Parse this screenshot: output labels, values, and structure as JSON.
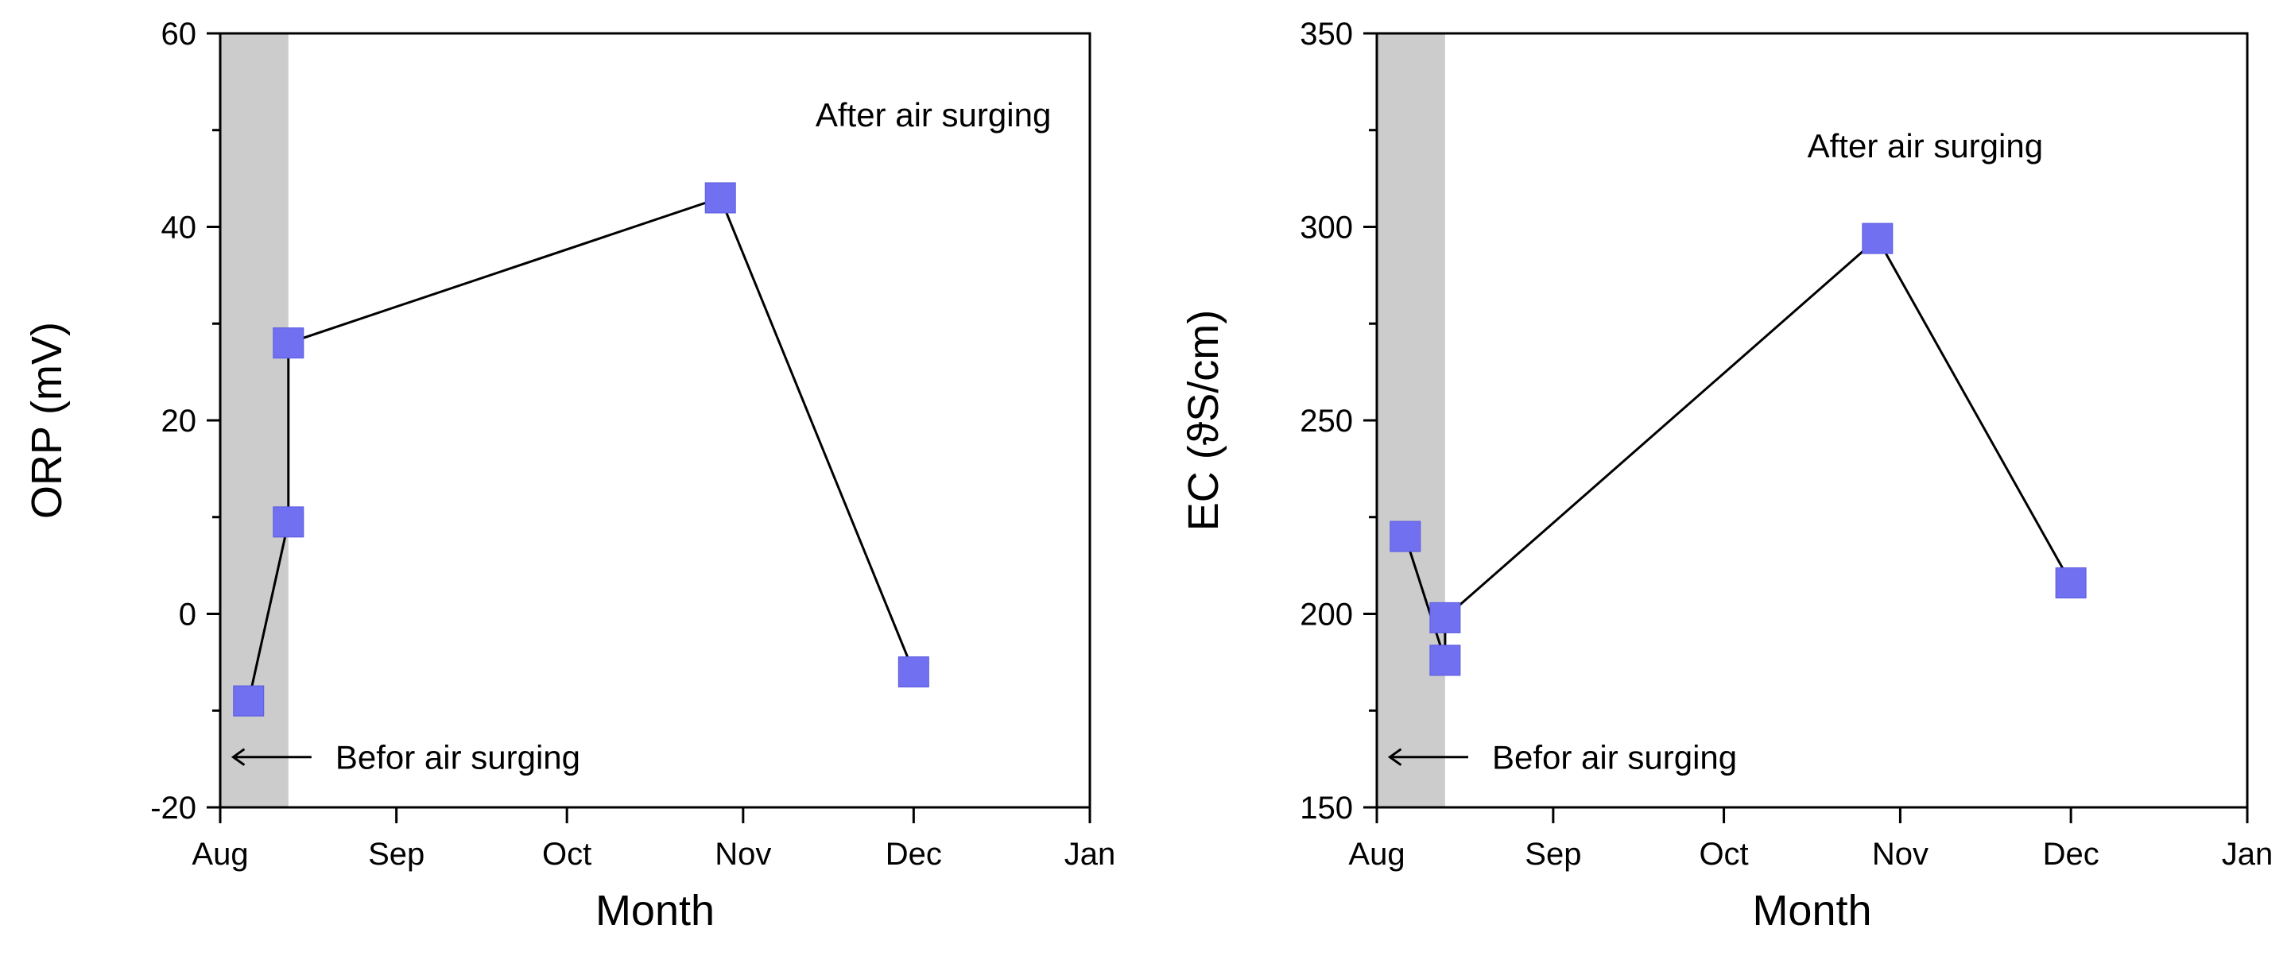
{
  "figure": {
    "colors": {
      "marker": "#7070f0",
      "marker_edge": "#5a5ae0",
      "line": "#000000",
      "shade": "#cccccc"
    }
  },
  "chart_data": [
    {
      "type": "line",
      "xlabel": "Month",
      "ylabel": "ORP (mV)",
      "x_tick_labels": [
        "Aug",
        "Sep",
        "Oct",
        "Nov",
        "Dec",
        "Jan"
      ],
      "xlim": [
        "Aug 1",
        "Jan 1"
      ],
      "ylim": [
        -20,
        60
      ],
      "y_ticks": [
        -20,
        0,
        20,
        40,
        60
      ],
      "y_tick_labels": [
        "-20",
        "0",
        "20",
        "40",
        "60"
      ],
      "shaded_period": [
        "Aug 1",
        "Aug 13"
      ],
      "grid": false,
      "annotations": {
        "after": "After air surging",
        "before": "Befor air surging"
      },
      "series": [
        {
          "x": [
            "Aug 6",
            "Aug 13",
            "Aug 13",
            "Oct 28",
            "Dec 1"
          ],
          "values": [
            -9,
            9.5,
            28,
            43,
            -6
          ]
        }
      ]
    },
    {
      "type": "line",
      "xlabel": "Month",
      "ylabel": "EC (ϑS/cm)",
      "x_tick_labels": [
        "Aug",
        "Sep",
        "Oct",
        "Nov",
        "Dec",
        "Jan"
      ],
      "xlim": [
        "Aug 1",
        "Jan 1"
      ],
      "ylim": [
        150,
        350
      ],
      "y_ticks": [
        150,
        200,
        250,
        300,
        350
      ],
      "y_tick_labels": [
        "150",
        "200",
        "250",
        "300",
        "350"
      ],
      "shaded_period": [
        "Aug 1",
        "Aug 13"
      ],
      "grid": false,
      "annotations": {
        "after": "After air surging",
        "before": "Befor air surging"
      },
      "series": [
        {
          "x": [
            "Aug 6",
            "Aug 13",
            "Aug 13",
            "Oct 28",
            "Dec 1"
          ],
          "values": [
            220,
            188,
            199,
            297,
            208
          ]
        }
      ]
    }
  ]
}
